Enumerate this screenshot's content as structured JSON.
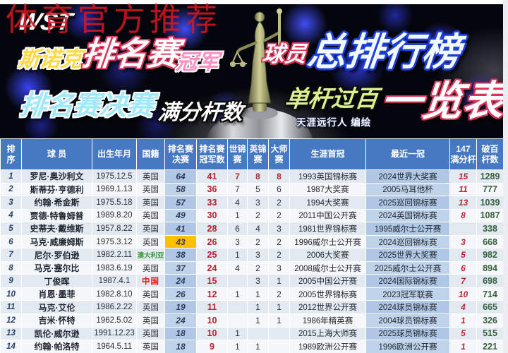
{
  "watermark": "体育官方推荐",
  "banner": {
    "logo": "WST",
    "line1_left": {
      "prefix": "斯诺克",
      "main": "排名赛",
      "suffix": "冠军"
    },
    "line1_right": {
      "prefix": "球员",
      "main": "总排行榜"
    },
    "line2_left": {
      "main": "排名赛决赛",
      "suffix": "满分杆数"
    },
    "line2_right": {
      "prefix": "单杆过百",
      "main": "一览表"
    },
    "credit": "天涯远行人    编绘"
  },
  "table": {
    "headers": [
      "排\n序",
      "球 员",
      "出生年月",
      "国籍",
      "排名赛\n决赛",
      "排名赛\n冠军数",
      "世锦\n赛",
      "英锦\n赛",
      "大师\n赛",
      "生涯首冠",
      "最近一冠",
      "147\n满分杆",
      "破百\n杆数"
    ],
    "rows": [
      {
        "rank": "1",
        "name": "罗尼·奥沙利文",
        "birth": "1975.12.5",
        "nation": "英国",
        "nation_style": "",
        "finals": "64",
        "finals_highlight": false,
        "titles": "41",
        "world": "7",
        "uk": "8",
        "masters": "8",
        "triple_red": true,
        "first": "1993英国锦标赛",
        "latest": "2024世界大奖赛",
        "max147": "15",
        "centuries": "1289"
      },
      {
        "rank": "2",
        "name": "斯蒂芬·亨德利",
        "birth": "1969.1.13",
        "nation": "英国",
        "nation_style": "",
        "finals": "58",
        "finals_highlight": false,
        "titles": "36",
        "world": "7",
        "uk": "5",
        "masters": "6",
        "triple_red": false,
        "first": "1987大奖赛",
        "latest": "2005马耳他杯",
        "max147": "11",
        "centuries": "777"
      },
      {
        "rank": "3",
        "name": "约翰·希金斯",
        "birth": "1975.5.18",
        "nation": "英国",
        "nation_style": "",
        "finals": "57",
        "finals_highlight": false,
        "titles": "33",
        "world": "4",
        "uk": "3",
        "masters": "2",
        "triple_red": false,
        "first": "1994大奖赛",
        "latest": "2025巡回锦标赛",
        "max147": "13",
        "centuries": "1039"
      },
      {
        "rank": "4",
        "name": "贾德·特鲁姆普",
        "birth": "1989.8.20",
        "nation": "英国",
        "nation_style": "",
        "finals": "49",
        "finals_highlight": false,
        "titles": "30",
        "world": "1",
        "uk": "2",
        "masters": "2",
        "triple_red": false,
        "first": "2011中国公开赛",
        "latest": "2024英国锦标赛",
        "max147": "8",
        "centuries": "1087"
      },
      {
        "rank": "5",
        "name": "史蒂夫·戴维斯",
        "birth": "1957.8.22",
        "nation": "英国",
        "nation_style": "",
        "finals": "41",
        "finals_highlight": false,
        "titles": "28",
        "world": "6",
        "uk": "4",
        "masters": "3",
        "triple_red": false,
        "first": "1981世界锦标赛",
        "latest": "1995威尔士公开赛",
        "max147": "",
        "centuries": "338"
      },
      {
        "rank": "6",
        "name": "马克·威廉姆斯",
        "birth": "1975.3.12",
        "nation": "英国",
        "nation_style": "",
        "finals": "43",
        "finals_highlight": true,
        "titles": "26",
        "world": "3",
        "uk": "2",
        "masters": "2",
        "triple_red": false,
        "first": "1996威尔士公开赛",
        "latest": "2024巡回锦标赛",
        "max147": "3",
        "centuries": "668"
      },
      {
        "rank": "7",
        "name": "尼尔·罗伯逊",
        "birth": "1982.2.11",
        "nation": "澳大利亚",
        "nation_style": "green",
        "finals": "38",
        "finals_highlight": false,
        "titles": "25",
        "world": "1",
        "uk": "3",
        "masters": "2",
        "triple_red": false,
        "first": "2006大奖赛",
        "latest": "2025世界大奖赛",
        "max147": "5",
        "centuries": "982"
      },
      {
        "rank": "8",
        "name": "马克·塞尔比",
        "birth": "1983.6.19",
        "nation": "英国",
        "nation_style": "",
        "finals": "37",
        "finals_highlight": false,
        "titles": "24",
        "world": "4",
        "uk": "2",
        "masters": "3",
        "triple_red": false,
        "first": "2008威尔士公开赛",
        "latest": "2025威尔士公开赛",
        "max147": "6",
        "centuries": "894"
      },
      {
        "rank": "9",
        "name": "丁俊晖",
        "birth": "1987.4.1",
        "nation": "中国",
        "nation_style": "red",
        "finals": "24",
        "finals_highlight": false,
        "titles": "15",
        "world": "",
        "uk": "3",
        "masters": "1",
        "triple_red": false,
        "first": "2005中国公开赛",
        "latest": "2024国际锦标赛",
        "max147": "7",
        "centuries": "698"
      },
      {
        "rank": "10",
        "name": "肖恩·墨菲",
        "birth": "1982.8.10",
        "nation": "英国",
        "nation_style": "",
        "finals": "26",
        "finals_highlight": false,
        "titles": "12",
        "world": "1",
        "uk": "1",
        "masters": "2",
        "triple_red": false,
        "first": "2005世界锦标赛",
        "latest": "2023冠军联赛",
        "max147": "10",
        "centuries": "714"
      },
      {
        "rank": "11",
        "name": "马克·艾伦",
        "birth": "1986.2.22",
        "nation": "英国",
        "nation_style": "",
        "finals": "19",
        "finals_highlight": false,
        "titles": "11",
        "world": "",
        "uk": "1",
        "masters": "1",
        "triple_red": false,
        "first": "2012世界公开赛",
        "latest": "2024球员锦标赛",
        "max147": "4",
        "centuries": "665"
      },
      {
        "rank": "12",
        "name": "吉米·怀特",
        "birth": "1962.5.02",
        "nation": "英国",
        "nation_style": "",
        "finals": "24",
        "finals_highlight": false,
        "titles": "10",
        "world": "",
        "uk": "1",
        "masters": "1",
        "triple_red": false,
        "first": "1986年精英赛",
        "latest": "2004球员锦标赛",
        "max147": "1",
        "centuries": "326"
      },
      {
        "rank": "13",
        "name": "凯伦·威尔逊",
        "birth": "1991.12.23",
        "nation": "英国",
        "nation_style": "",
        "finals": "18",
        "finals_highlight": false,
        "titles": "10",
        "world": "1",
        "uk": "",
        "masters": "",
        "triple_red": false,
        "first": "2015上海大师赛",
        "latest": "2025球员锦标赛",
        "max147": "5",
        "centuries": "515"
      },
      {
        "rank": "14",
        "name": "约翰·帕洛特",
        "birth": "1964.5.11",
        "nation": "英国",
        "nation_style": "",
        "finals": "18",
        "finals_highlight": false,
        "titles": "9",
        "world": "1",
        "uk": "1",
        "masters": "",
        "triple_red": false,
        "first": "1989欧洲公开赛",
        "latest": "1996欧洲公开赛",
        "max147": "1",
        "centuries": "221"
      }
    ],
    "accent_colors": {
      "header_blue": "#4679c2",
      "finals_column_blue": "#b0c8e5",
      "highlight_orange": "#fdc101",
      "titles_red": "#b7202e",
      "centuries_green": "#37603f"
    }
  }
}
